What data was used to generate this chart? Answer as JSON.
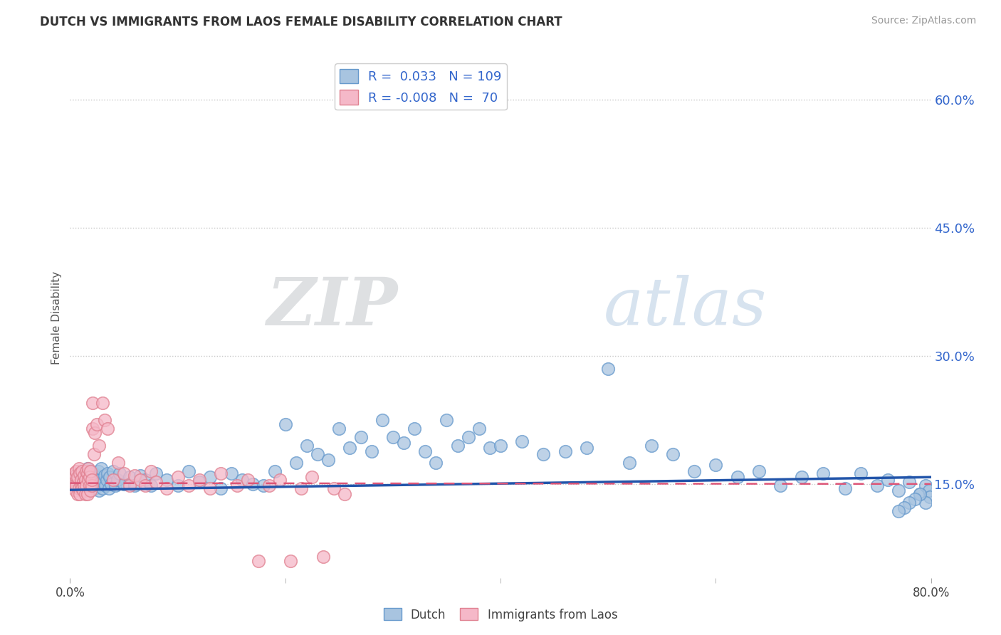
{
  "title": "DUTCH VS IMMIGRANTS FROM LAOS FEMALE DISABILITY CORRELATION CHART",
  "source": "Source: ZipAtlas.com",
  "ylabel": "Female Disability",
  "yticks": [
    0.15,
    0.3,
    0.45,
    0.6
  ],
  "ytick_labels": [
    "15.0%",
    "30.0%",
    "45.0%",
    "60.0%"
  ],
  "xmin": 0.0,
  "xmax": 0.8,
  "ymin": 0.04,
  "ymax": 0.65,
  "legend_dutch_R": "0.033",
  "legend_dutch_N": "109",
  "legend_laos_R": "-0.008",
  "legend_laos_N": "70",
  "dutch_color": "#a8c4e0",
  "dutch_edge_color": "#6699cc",
  "laos_color": "#f5b8c8",
  "laos_edge_color": "#e08090",
  "dutch_line_color": "#2255aa",
  "laos_line_color": "#dd5577",
  "watermark_zip": "ZIP",
  "watermark_atlas": "atlas",
  "background_color": "#ffffff",
  "dutch_x": [
    0.004,
    0.005,
    0.006,
    0.007,
    0.008,
    0.009,
    0.01,
    0.011,
    0.012,
    0.013,
    0.014,
    0.015,
    0.016,
    0.017,
    0.018,
    0.019,
    0.02,
    0.021,
    0.022,
    0.023,
    0.024,
    0.025,
    0.026,
    0.027,
    0.028,
    0.029,
    0.03,
    0.031,
    0.032,
    0.033,
    0.034,
    0.035,
    0.036,
    0.037,
    0.038,
    0.04,
    0.042,
    0.044,
    0.046,
    0.05,
    0.055,
    0.06,
    0.065,
    0.07,
    0.075,
    0.08,
    0.09,
    0.1,
    0.11,
    0.12,
    0.13,
    0.14,
    0.15,
    0.16,
    0.17,
    0.18,
    0.19,
    0.2,
    0.21,
    0.22,
    0.23,
    0.24,
    0.25,
    0.26,
    0.27,
    0.28,
    0.29,
    0.3,
    0.31,
    0.32,
    0.33,
    0.34,
    0.35,
    0.36,
    0.37,
    0.38,
    0.39,
    0.4,
    0.42,
    0.44,
    0.46,
    0.48,
    0.5,
    0.52,
    0.54,
    0.56,
    0.58,
    0.6,
    0.62,
    0.64,
    0.66,
    0.68,
    0.7,
    0.72,
    0.735,
    0.75,
    0.76,
    0.77,
    0.78,
    0.79,
    0.795,
    0.798,
    0.799,
    0.795,
    0.79,
    0.785,
    0.78,
    0.775,
    0.77
  ],
  "dutch_y": [
    0.155,
    0.15,
    0.16,
    0.148,
    0.155,
    0.162,
    0.145,
    0.158,
    0.15,
    0.165,
    0.142,
    0.155,
    0.168,
    0.145,
    0.152,
    0.16,
    0.148,
    0.155,
    0.162,
    0.145,
    0.158,
    0.15,
    0.165,
    0.142,
    0.155,
    0.168,
    0.145,
    0.152,
    0.16,
    0.148,
    0.155,
    0.162,
    0.145,
    0.158,
    0.15,
    0.165,
    0.148,
    0.155,
    0.162,
    0.15,
    0.158,
    0.148,
    0.16,
    0.155,
    0.148,
    0.162,
    0.155,
    0.148,
    0.165,
    0.152,
    0.158,
    0.145,
    0.162,
    0.155,
    0.15,
    0.148,
    0.165,
    0.22,
    0.175,
    0.195,
    0.185,
    0.178,
    0.215,
    0.192,
    0.205,
    0.188,
    0.225,
    0.205,
    0.198,
    0.215,
    0.188,
    0.175,
    0.225,
    0.195,
    0.205,
    0.215,
    0.192,
    0.195,
    0.2,
    0.185,
    0.188,
    0.192,
    0.285,
    0.175,
    0.195,
    0.185,
    0.165,
    0.172,
    0.158,
    0.165,
    0.148,
    0.158,
    0.162,
    0.145,
    0.162,
    0.148,
    0.155,
    0.142,
    0.152,
    0.138,
    0.148,
    0.142,
    0.135,
    0.128,
    0.138,
    0.132,
    0.128,
    0.122,
    0.118
  ],
  "laos_x": [
    0.003,
    0.004,
    0.004,
    0.005,
    0.005,
    0.006,
    0.006,
    0.007,
    0.007,
    0.008,
    0.008,
    0.009,
    0.009,
    0.01,
    0.01,
    0.011,
    0.011,
    0.012,
    0.012,
    0.013,
    0.013,
    0.014,
    0.014,
    0.015,
    0.015,
    0.016,
    0.016,
    0.017,
    0.017,
    0.018,
    0.018,
    0.019,
    0.019,
    0.02,
    0.02,
    0.021,
    0.021,
    0.022,
    0.023,
    0.025,
    0.027,
    0.03,
    0.032,
    0.035,
    0.04,
    0.045,
    0.05,
    0.055,
    0.06,
    0.065,
    0.07,
    0.075,
    0.08,
    0.09,
    0.1,
    0.11,
    0.12,
    0.13,
    0.14,
    0.155,
    0.165,
    0.175,
    0.185,
    0.195,
    0.205,
    0.215,
    0.225,
    0.235,
    0.245,
    0.255
  ],
  "laos_y": [
    0.155,
    0.148,
    0.162,
    0.142,
    0.16,
    0.148,
    0.165,
    0.138,
    0.158,
    0.145,
    0.168,
    0.138,
    0.162,
    0.148,
    0.155,
    0.145,
    0.165,
    0.152,
    0.142,
    0.16,
    0.148,
    0.155,
    0.138,
    0.165,
    0.148,
    0.162,
    0.138,
    0.155,
    0.168,
    0.148,
    0.158,
    0.142,
    0.165,
    0.148,
    0.155,
    0.245,
    0.215,
    0.185,
    0.21,
    0.22,
    0.195,
    0.245,
    0.225,
    0.215,
    0.155,
    0.175,
    0.162,
    0.148,
    0.16,
    0.155,
    0.148,
    0.165,
    0.152,
    0.145,
    0.158,
    0.148,
    0.155,
    0.145,
    0.162,
    0.148,
    0.155,
    0.06,
    0.148,
    0.155,
    0.06,
    0.145,
    0.158,
    0.065,
    0.145,
    0.138
  ]
}
